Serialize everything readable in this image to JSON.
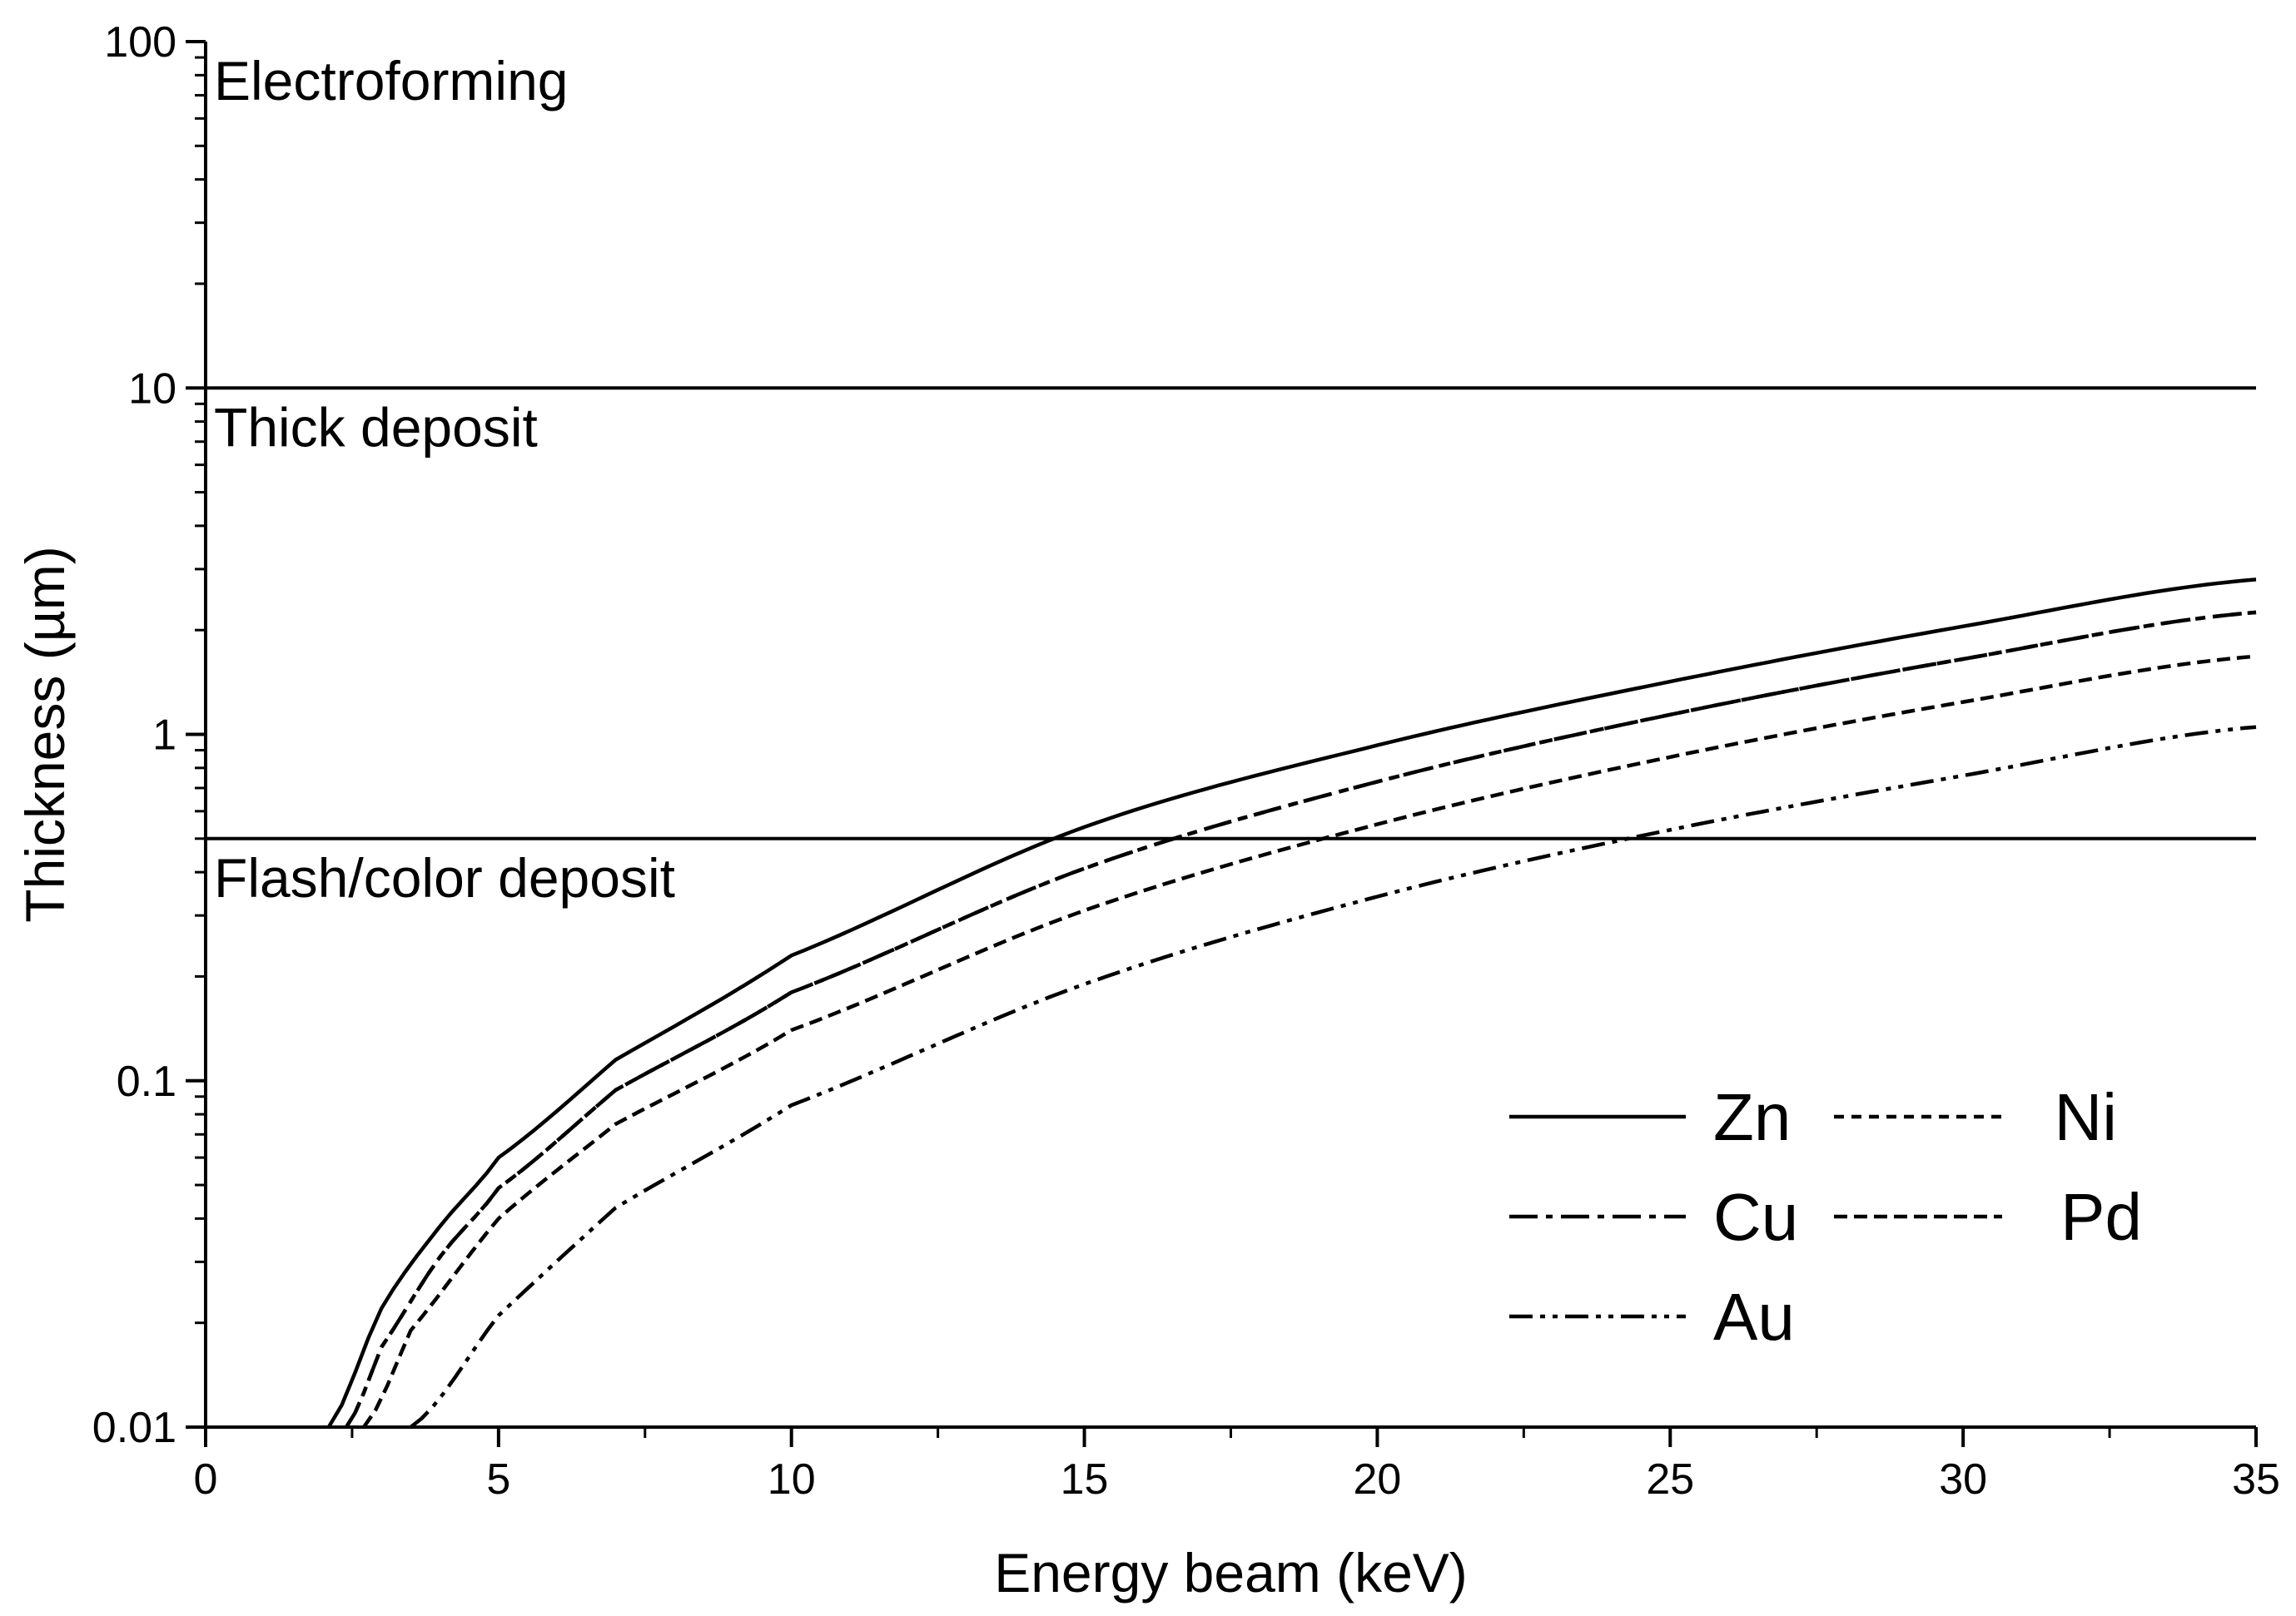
{
  "chart_data": {
    "type": "line",
    "title": "",
    "xlabel": "Energy beam (keV)",
    "ylabel": "Thickness (µm)",
    "xlim": [
      0,
      35
    ],
    "ylim": [
      0.01,
      100
    ],
    "yscale": "log",
    "grid": false,
    "legend_position": "bottom-right",
    "x_ticks": [
      0,
      5,
      10,
      15,
      20,
      25,
      30,
      35
    ],
    "x_tick_labels": [
      "0",
      "5",
      "10",
      "15",
      "20",
      "25",
      "30",
      "35"
    ],
    "y_ticks": [
      0.01,
      0.1,
      1,
      10,
      100
    ],
    "y_tick_labels": [
      "0.01",
      "0.1",
      "1",
      "10",
      "100"
    ],
    "reference_lines": [
      {
        "y": 10,
        "label": "Thick deposit"
      },
      {
        "y": 0.5,
        "label": "Flash/color deposit"
      }
    ],
    "region_labels": [
      {
        "text": "Electroforming",
        "x": 0,
        "y": 100
      },
      {
        "text": "Thick deposit",
        "x": 0,
        "y": 10
      },
      {
        "text": "Flash/color deposit",
        "x": 0,
        "y": 0.5
      }
    ],
    "series": [
      {
        "name": "Zn",
        "style": "solid",
        "x": [
          2.1,
          3,
          4,
          5,
          7,
          10,
          15,
          20,
          25,
          30,
          35
        ],
        "values": [
          0.01,
          0.022,
          0.038,
          0.06,
          0.115,
          0.23,
          0.54,
          0.93,
          1.42,
          2.05,
          2.8
        ]
      },
      {
        "name": "Cu",
        "style": "dash-dot",
        "x": [
          2.4,
          3,
          4,
          5,
          7,
          10,
          15,
          20,
          25,
          30,
          35
        ],
        "values": [
          0.01,
          0.017,
          0.031,
          0.049,
          0.094,
          0.18,
          0.41,
          0.73,
          1.14,
          1.65,
          2.25
        ]
      },
      {
        "name": "Ni",
        "style": "dotted",
        "x": [
          2.4,
          3,
          4,
          5,
          7,
          10,
          15,
          20,
          25,
          30,
          35
        ],
        "values": [
          0.01,
          0.017,
          0.031,
          0.049,
          0.094,
          0.18,
          0.41,
          0.73,
          1.14,
          1.65,
          2.25
        ]
      },
      {
        "name": "Pd",
        "style": "short-dash",
        "x": [
          2.7,
          3.5,
          5,
          7,
          10,
          15,
          20,
          25,
          30,
          35
        ],
        "values": [
          0.01,
          0.019,
          0.04,
          0.075,
          0.14,
          0.31,
          0.55,
          0.86,
          1.24,
          1.68
        ]
      },
      {
        "name": "Au",
        "style": "dash-dot-dot",
        "x": [
          3.5,
          5,
          7,
          10,
          15,
          20,
          25,
          30,
          35
        ],
        "values": [
          0.01,
          0.021,
          0.043,
          0.085,
          0.19,
          0.34,
          0.53,
          0.76,
          1.05
        ]
      }
    ],
    "legend_entries": [
      {
        "series": "Zn",
        "label": "Zn",
        "style": "solid"
      },
      {
        "series": "Ni",
        "label": "Ni",
        "style": "dotted"
      },
      {
        "series": "Cu",
        "label": "Cu",
        "style": "dash-dot"
      },
      {
        "series": "Pd",
        "label": "Pd",
        "style": "short-dash"
      },
      {
        "series": "Au",
        "label": "Au",
        "style": "dash-dot-dot"
      }
    ]
  }
}
